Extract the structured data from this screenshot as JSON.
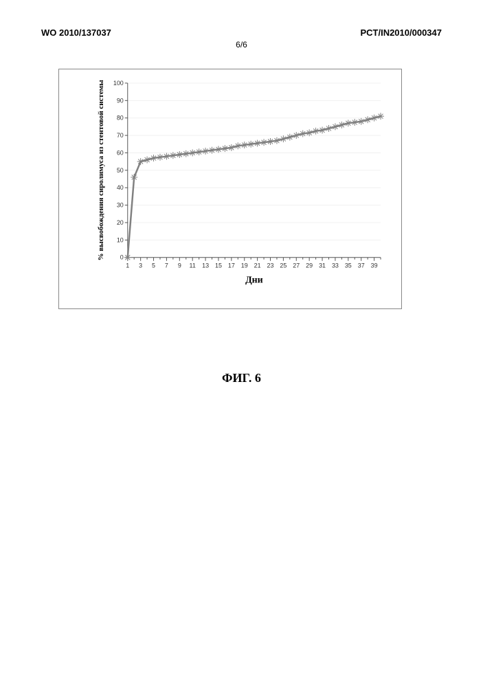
{
  "header": {
    "left": "WO 2010/137037",
    "right": "PCT/IN2010/000347",
    "page_num": "6/6"
  },
  "figure": {
    "chart": {
      "type": "line",
      "xlabel": "Дни",
      "ylabel": "% высвобождения сиролимуса из стентовой системы",
      "label_fontsize_pt": 11,
      "xlabel_fontsize_pt": 14,
      "xlabel_bold": true,
      "xlim": [
        1,
        40
      ],
      "ylim": [
        0,
        100
      ],
      "yticks": [
        0,
        10,
        20,
        30,
        40,
        50,
        60,
        70,
        80,
        90,
        100
      ],
      "xticks": [
        1,
        3,
        5,
        7,
        9,
        11,
        13,
        15,
        17,
        19,
        21,
        23,
        25,
        27,
        29,
        31,
        33,
        35,
        37,
        39
      ],
      "tick_fontsize_pt": 9,
      "grid_color": "#f0f0f0",
      "axis_color": "#555555",
      "line_color": "#808080",
      "marker_color": "#808080",
      "line_width": 2.5,
      "marker": "asterisk",
      "marker_size": 5,
      "background_color": "#ffffff",
      "border_color": "#888888",
      "x": [
        1,
        2,
        3,
        4,
        5,
        6,
        7,
        8,
        9,
        10,
        11,
        12,
        13,
        14,
        15,
        16,
        17,
        18,
        19,
        20,
        21,
        22,
        23,
        24,
        25,
        26,
        27,
        28,
        29,
        30,
        31,
        32,
        33,
        34,
        35,
        36,
        37,
        38,
        39,
        40
      ],
      "y": [
        0,
        46,
        55,
        56,
        57,
        57.5,
        58,
        58.5,
        59,
        59.5,
        60,
        60.5,
        61,
        61.5,
        62,
        62.5,
        63,
        64,
        64.5,
        65,
        65.5,
        66,
        66.5,
        67,
        68,
        69,
        70,
        71,
        71.5,
        72.5,
        73,
        74,
        75,
        76,
        77,
        77.5,
        78,
        79,
        80,
        81
      ]
    },
    "caption": "ФИГ. 6"
  }
}
